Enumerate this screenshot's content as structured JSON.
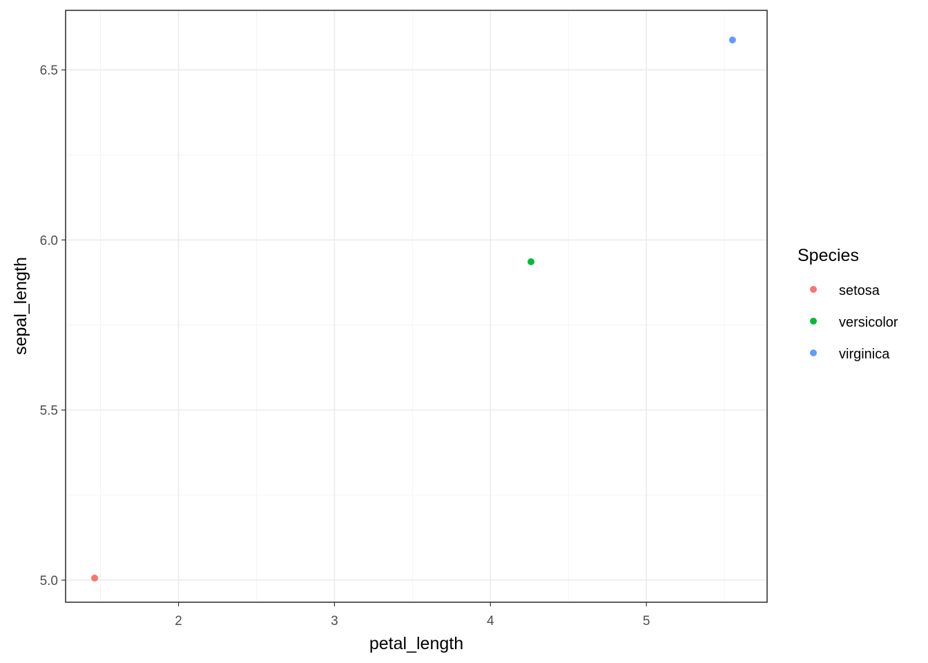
{
  "chart_data": {
    "type": "scatter",
    "title": "",
    "xlabel": "petal_length",
    "ylabel": "sepal_length",
    "xlim": [
      1.276,
      5.774
    ],
    "ylim": [
      4.935,
      6.675
    ],
    "x_ticks": [
      2,
      3,
      4,
      5
    ],
    "x_tick_labels": [
      "2",
      "3",
      "4",
      "5"
    ],
    "y_ticks": [
      5.0,
      5.5,
      6.0,
      6.5
    ],
    "y_tick_labels": [
      "5.0",
      "5.5",
      "6.0",
      "6.5"
    ],
    "grid": true,
    "legend_position": "right",
    "legend_title": "Species",
    "series": [
      {
        "name": "setosa",
        "color": "#F8766D",
        "x": [
          1.462
        ],
        "y": [
          5.006
        ]
      },
      {
        "name": "versicolor",
        "color": "#00BA38",
        "x": [
          4.26
        ],
        "y": [
          5.936
        ]
      },
      {
        "name": "virginica",
        "color": "#619CFF",
        "x": [
          5.552
        ],
        "y": [
          6.588
        ]
      }
    ]
  }
}
